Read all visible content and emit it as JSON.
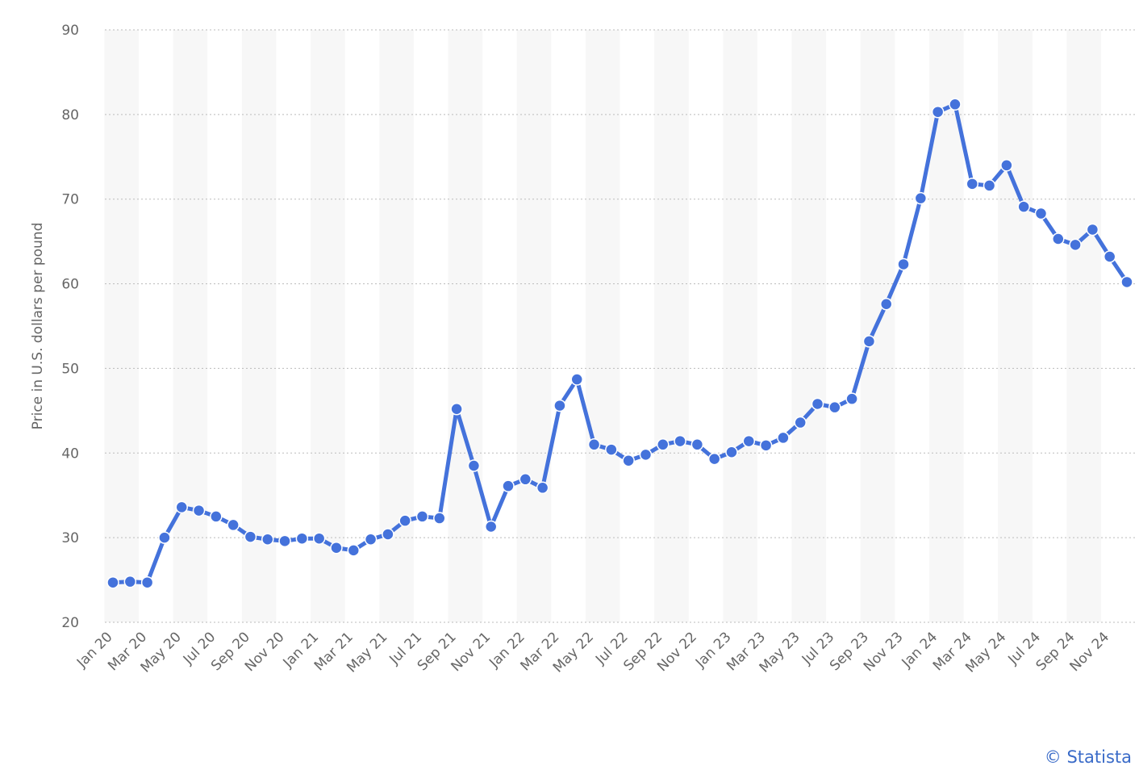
{
  "chart_data": {
    "type": "line",
    "y_label": "Price in U.S. dollars per pound",
    "credit": "© Statista",
    "categories": [
      "Jan 20",
      null,
      "Mar 20",
      null,
      "May 20",
      null,
      "Jul 20",
      null,
      "Sep 20",
      null,
      "Nov 20",
      null,
      "Jan 21",
      null,
      "Mar 21",
      null,
      "May 21",
      null,
      "Jul 21",
      null,
      "Sep 21",
      null,
      "Nov 21",
      null,
      "Jan 22",
      null,
      "Mar 22",
      null,
      "May 22",
      null,
      "Jul 22",
      null,
      "Sep 22",
      null,
      "Nov 22",
      null,
      "Jan 23",
      null,
      "Mar 23",
      null,
      "May 23",
      null,
      "Jul 23",
      null,
      "Sep 23",
      null,
      "Nov 23",
      null,
      "Jan 24",
      null,
      "Mar 24",
      null,
      "May 24",
      null,
      "Jul 24",
      null,
      "Sep 24",
      null,
      "Nov 24",
      null
    ],
    "values": [
      24.7,
      24.8,
      24.7,
      30.0,
      33.6,
      33.2,
      32.5,
      31.5,
      30.1,
      29.8,
      29.6,
      29.9,
      29.9,
      28.8,
      28.5,
      29.8,
      30.4,
      32.0,
      32.5,
      32.3,
      45.2,
      38.5,
      31.3,
      36.1,
      36.9,
      35.9,
      45.6,
      48.7,
      41.0,
      40.4,
      39.1,
      39.8,
      41.0,
      41.4,
      41.0,
      39.3,
      40.1,
      41.4,
      40.9,
      41.8,
      43.6,
      45.8,
      45.4,
      46.4,
      53.2,
      57.6,
      62.3,
      70.1,
      80.3,
      81.2,
      71.8,
      71.6,
      74.0,
      69.1,
      68.3,
      65.3,
      64.6,
      66.4,
      63.2,
      60.2
    ],
    "color": "#4472db",
    "ylim": [
      20,
      90
    ],
    "yticks": [
      20,
      30,
      40,
      50,
      60,
      70,
      80,
      90
    ],
    "grid": true
  }
}
